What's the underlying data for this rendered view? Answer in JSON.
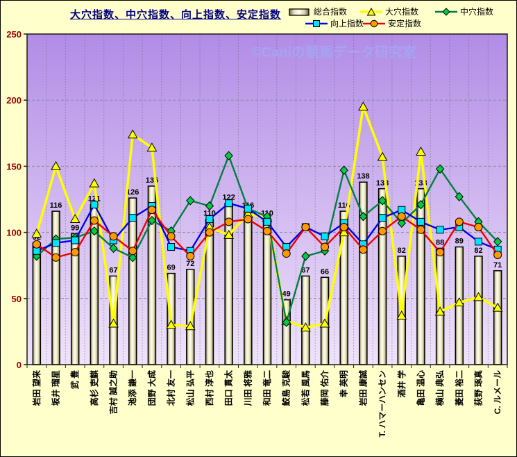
{
  "title": "大穴指数、中穴指数、向上指数、安定指数",
  "watermark": "©Caniの競馬データ研究室",
  "legend": [
    {
      "label": "総合指数",
      "type": "bar",
      "line": "#000000",
      "fill": "#f5f2d0"
    },
    {
      "label": "大穴指数",
      "type": "triangle",
      "line": "#ffff00",
      "fill": "#ffff00"
    },
    {
      "label": "中穴指数",
      "type": "diamond",
      "line": "#007f3f",
      "fill": "#00cc44"
    },
    {
      "label": "向上指数",
      "type": "square",
      "line": "#0000ee",
      "fill": "#00e5ff"
    },
    {
      "label": "安定指数",
      "type": "circle",
      "line": "#ee0000",
      "fill": "#ff9900"
    }
  ],
  "colors": {
    "canvas_bg": "#ffffcc",
    "plot_bg_top": "#b28ce6",
    "plot_bg_bottom": "#efe3fa",
    "grid": "#8c8c8c",
    "ytick_color": "#990000",
    "xtick_color": "#000000",
    "title_color": "#000080",
    "watermark_color": "#a3a8f5",
    "bar_border": "#000000"
  },
  "chart_data": {
    "type": "bar",
    "title": "大穴指数、中穴指数、向上指数、安定指数",
    "xlabel": "",
    "ylabel": "",
    "ylim": [
      0,
      250
    ],
    "yticks": [
      0,
      50,
      100,
      150,
      200,
      250
    ],
    "grid": true,
    "legend_position": "top-right",
    "bar_labels": true,
    "categories": [
      "岩田 望来",
      "坂井 瑠星",
      "武 豊",
      "高杉 吏麒",
      "吉村 誠之助",
      "池添 謙一",
      "団野 大成",
      "北村 友一",
      "松山 弘平",
      "西村 淳也",
      "田口 貫太",
      "川田 将雅",
      "和田 竜二",
      "鮫島 克駿",
      "松若 風馬",
      "藤岡 佑介",
      "幸 英明",
      "岩田 康誠",
      "T. ハマーハンセン",
      "酒井 学",
      "亀田 温心",
      "横山 典弘",
      "菱田 裕二",
      "荻野 琢真",
      "C. ルメール"
    ],
    "series": [
      {
        "name": "総合指数",
        "type": "bar",
        "color": "#f5f2d0",
        "values": [
          92,
          116,
          99,
          121,
          67,
          126,
          135,
          69,
          72,
          110,
          122,
          116,
          110,
          49,
          67,
          66,
          116,
          138,
          133,
          82,
          133,
          88,
          89,
          82,
          71
        ]
      },
      {
        "name": "大穴指数",
        "type": "line",
        "marker": "triangle",
        "color": "#ffff00",
        "marker_fill": "#ffff00",
        "values": [
          99,
          150,
          110,
          137,
          31,
          174,
          164,
          30,
          29,
          104,
          98,
          114,
          111,
          33,
          28,
          31,
          100,
          195,
          157,
          37,
          161,
          40,
          47,
          51,
          43
        ]
      },
      {
        "name": "中穴指数",
        "type": "line",
        "marker": "diamond",
        "color": "#007f3f",
        "marker_fill": "#00cc44",
        "values": [
          82,
          95,
          96,
          101,
          88,
          81,
          109,
          101,
          124,
          120,
          158,
          118,
          112,
          32,
          82,
          86,
          147,
          112,
          124,
          107,
          121,
          148,
          127,
          108,
          93
        ]
      },
      {
        "name": "向上指数",
        "type": "line",
        "marker": "square",
        "color": "#0000ee",
        "marker_fill": "#00e5ff",
        "values": [
          86,
          92,
          94,
          121,
          94,
          111,
          120,
          89,
          86,
          110,
          122,
          118,
          108,
          89,
          104,
          97,
          107,
          91,
          111,
          117,
          108,
          102,
          104,
          93,
          87
        ]
      },
      {
        "name": "安定指数",
        "type": "line",
        "marker": "circle",
        "color": "#ee0000",
        "marker_fill": "#ff9900",
        "values": [
          91,
          81,
          85,
          109,
          97,
          86,
          117,
          97,
          82,
          100,
          108,
          110,
          101,
          84,
          104,
          89,
          104,
          87,
          101,
          112,
          102,
          85,
          108,
          104,
          83
        ]
      }
    ]
  }
}
